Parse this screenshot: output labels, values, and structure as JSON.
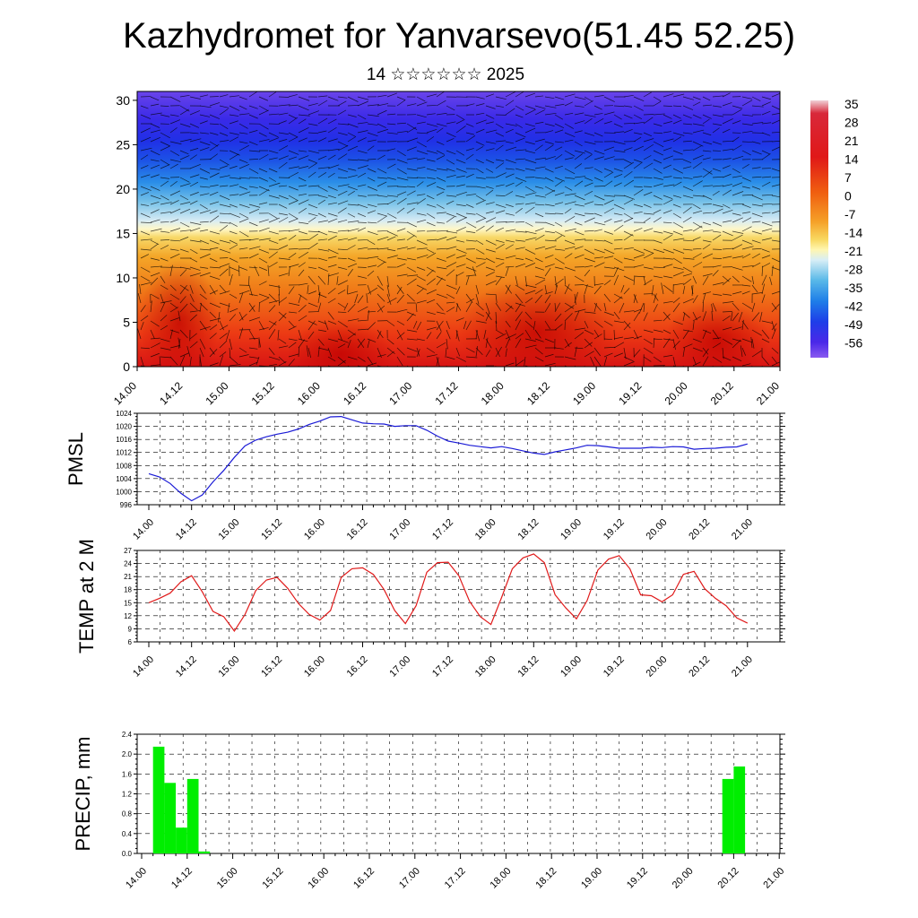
{
  "page": {
    "title": "Kazhydromet for Yanvarsevo(51.45 52.25)",
    "subtitle": "14 ☆☆☆☆☆☆ 2025"
  },
  "colors": {
    "pmsl_line": "#1a1ad6",
    "temp_line": "#e01a1a",
    "precip_bar": "#00ee00",
    "wind_barb": "#000000"
  },
  "chart_data": [
    {
      "type": "heatmap",
      "name": "cross-section",
      "ylim": [
        0,
        31
      ],
      "yticks": [
        0,
        5,
        10,
        15,
        20,
        25,
        30
      ],
      "xticks": [
        "14.00",
        "14.12",
        "15.00",
        "15.12",
        "16.00",
        "16.12",
        "17.00",
        "17.12",
        "18.00",
        "18.12",
        "19.00",
        "19.12",
        "20.00",
        "20.12",
        "21.00"
      ],
      "colorbar": {
        "labels": [
          "35",
          "28",
          "21",
          "14",
          "7",
          "0",
          "-7",
          "-14",
          "-21",
          "-28",
          "-35",
          "-42",
          "-49",
          "-56"
        ]
      },
      "overlay": "wind barbs"
    },
    {
      "type": "line",
      "ylabel": "PMSL",
      "ylim": [
        996,
        1024
      ],
      "yticks": [
        "996",
        "1000",
        "1004",
        "1008",
        "1012",
        "1016",
        "1020",
        "1024"
      ],
      "xticks": [
        "14.00",
        "14.12",
        "15.00",
        "15.12",
        "16.00",
        "16.12",
        "17.00",
        "17.12",
        "18.00",
        "18.12",
        "19.00",
        "19.12",
        "20.00",
        "20.12",
        "21.00"
      ],
      "x_hours": [
        0,
        3,
        6,
        9,
        12,
        15,
        18,
        21,
        24,
        27,
        30,
        33,
        36,
        39,
        42,
        45,
        48,
        51,
        54,
        57,
        60,
        63,
        66,
        69,
        72,
        75,
        78,
        81,
        84,
        87,
        90,
        93,
        96,
        99,
        102,
        105,
        108,
        111,
        114,
        117,
        120,
        123,
        126,
        129,
        132,
        135,
        138,
        141,
        144,
        147,
        150,
        153,
        156,
        159,
        162,
        165,
        168
      ],
      "values": [
        1005.5,
        1004.5,
        1002.5,
        999.5,
        997.2,
        999,
        1003,
        1006.5,
        1010.5,
        1014,
        1015.8,
        1016.8,
        1017.6,
        1018.2,
        1019.2,
        1020.6,
        1021.6,
        1022.9,
        1023,
        1022,
        1021,
        1020.8,
        1020.7,
        1020,
        1020.2,
        1020.2,
        1018.8,
        1017,
        1015.5,
        1014.9,
        1014.2,
        1013.8,
        1013.4,
        1013.8,
        1013.2,
        1012.5,
        1011.8,
        1011.4,
        1012.2,
        1012.8,
        1013.4,
        1014.2,
        1014.1,
        1013.7,
        1013.3,
        1013.3,
        1013.3,
        1013.6,
        1013.5,
        1013.8,
        1013.7,
        1013,
        1013.2,
        1013.3,
        1013.6,
        1013.7,
        1014.6
      ]
    },
    {
      "type": "line",
      "ylabel": "TEMP at 2 M",
      "ylim": [
        6,
        27
      ],
      "yticks": [
        "6",
        "9",
        "12",
        "15",
        "18",
        "21",
        "24",
        "27"
      ],
      "xticks": [
        "14.00",
        "14.12",
        "15.00",
        "15.12",
        "16.00",
        "16.12",
        "17.00",
        "17.12",
        "18.00",
        "18.12",
        "19.00",
        "19.12",
        "20.00",
        "20.12",
        "21.00"
      ],
      "x_hours": [
        0,
        3,
        6,
        9,
        12,
        15,
        18,
        21,
        24,
        27,
        30,
        33,
        36,
        39,
        42,
        45,
        48,
        51,
        54,
        57,
        60,
        63,
        66,
        69,
        72,
        75,
        78,
        81,
        84,
        87,
        90,
        93,
        96,
        99,
        102,
        105,
        108,
        111,
        114,
        117,
        120,
        123,
        126,
        129,
        132,
        135,
        138,
        141,
        144,
        147,
        150,
        153,
        156,
        159,
        162,
        165,
        168
      ],
      "values": [
        15,
        16,
        17.2,
        19.8,
        21.2,
        17.5,
        13,
        11.8,
        8.5,
        12.3,
        17.8,
        20.2,
        20.8,
        18.3,
        14.8,
        12.3,
        11,
        13.2,
        20.8,
        22.8,
        23,
        21.5,
        18,
        13.2,
        10.2,
        14.3,
        22,
        24.2,
        24.3,
        21.2,
        15.3,
        11.8,
        10,
        16.2,
        22.8,
        25.3,
        26.2,
        24.2,
        16.8,
        13.8,
        11.3,
        15.5,
        22.5,
        25,
        25.8,
        22.8,
        16.8,
        16.6,
        15.2,
        16.8,
        21.5,
        22.2,
        18.2,
        16,
        14.3,
        11.5,
        10.3
      ]
    },
    {
      "type": "bar",
      "ylabel": "PRECIP, mm",
      "ylim": [
        0,
        2.4
      ],
      "yticks": [
        "0.0",
        "0.4",
        "0.8",
        "1.2",
        "1.6",
        "2.0",
        "2.4"
      ],
      "xticks": [
        "14.00",
        "14.12",
        "15.00",
        "15.12",
        "16.00",
        "16.12",
        "17.00",
        "17.12",
        "18.00",
        "18.12",
        "19.00",
        "19.12",
        "20.00",
        "20.12",
        "21.00"
      ],
      "bars": [
        {
          "start_hour": 3,
          "end_hour": 6,
          "value": 2.15
        },
        {
          "start_hour": 6,
          "end_hour": 9,
          "value": 1.42
        },
        {
          "start_hour": 9,
          "end_hour": 12,
          "value": 0.52
        },
        {
          "start_hour": 12,
          "end_hour": 15,
          "value": 1.5
        },
        {
          "start_hour": 15,
          "end_hour": 18,
          "value": 0.04
        },
        {
          "start_hour": 153,
          "end_hour": 156,
          "value": 1.5
        },
        {
          "start_hour": 156,
          "end_hour": 159,
          "value": 1.75
        }
      ]
    }
  ]
}
